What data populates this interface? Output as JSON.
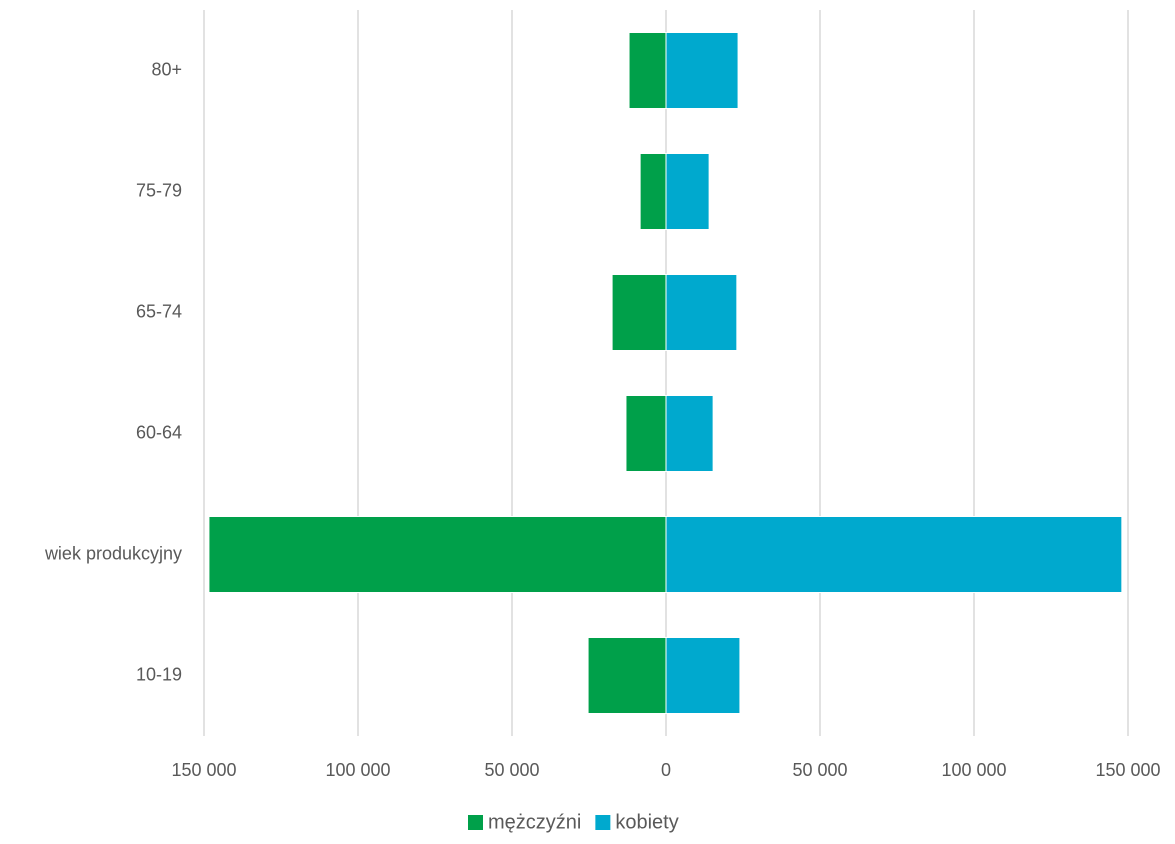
{
  "chart_data": {
    "type": "bar",
    "orientation": "horizontal",
    "categories": [
      "80+",
      "75-79",
      "65-74",
      "60-64",
      "wiek produkcyjny",
      "10-19"
    ],
    "series": [
      {
        "name": "mężczyźni",
        "color": "#00a04a",
        "values": [
          -12000,
          -8400,
          -17500,
          -13000,
          -148400,
          -25300
        ]
      },
      {
        "name": "kobiety",
        "color": "#00a9ce",
        "values": [
          23400,
          14000,
          23000,
          15300,
          148000,
          24000
        ]
      }
    ],
    "xlim": [
      -150000,
      150000
    ],
    "xticks": [
      {
        "value": -150000,
        "label": "150 000"
      },
      {
        "value": -100000,
        "label": "100 000"
      },
      {
        "value": -50000,
        "label": "50 000"
      },
      0,
      {
        "value": 50000,
        "label": "50 000"
      },
      {
        "value": 100000,
        "label": "100 000"
      },
      {
        "value": 150000,
        "label": "150 000"
      }
    ],
    "grid": true,
    "legend": "bottom"
  }
}
